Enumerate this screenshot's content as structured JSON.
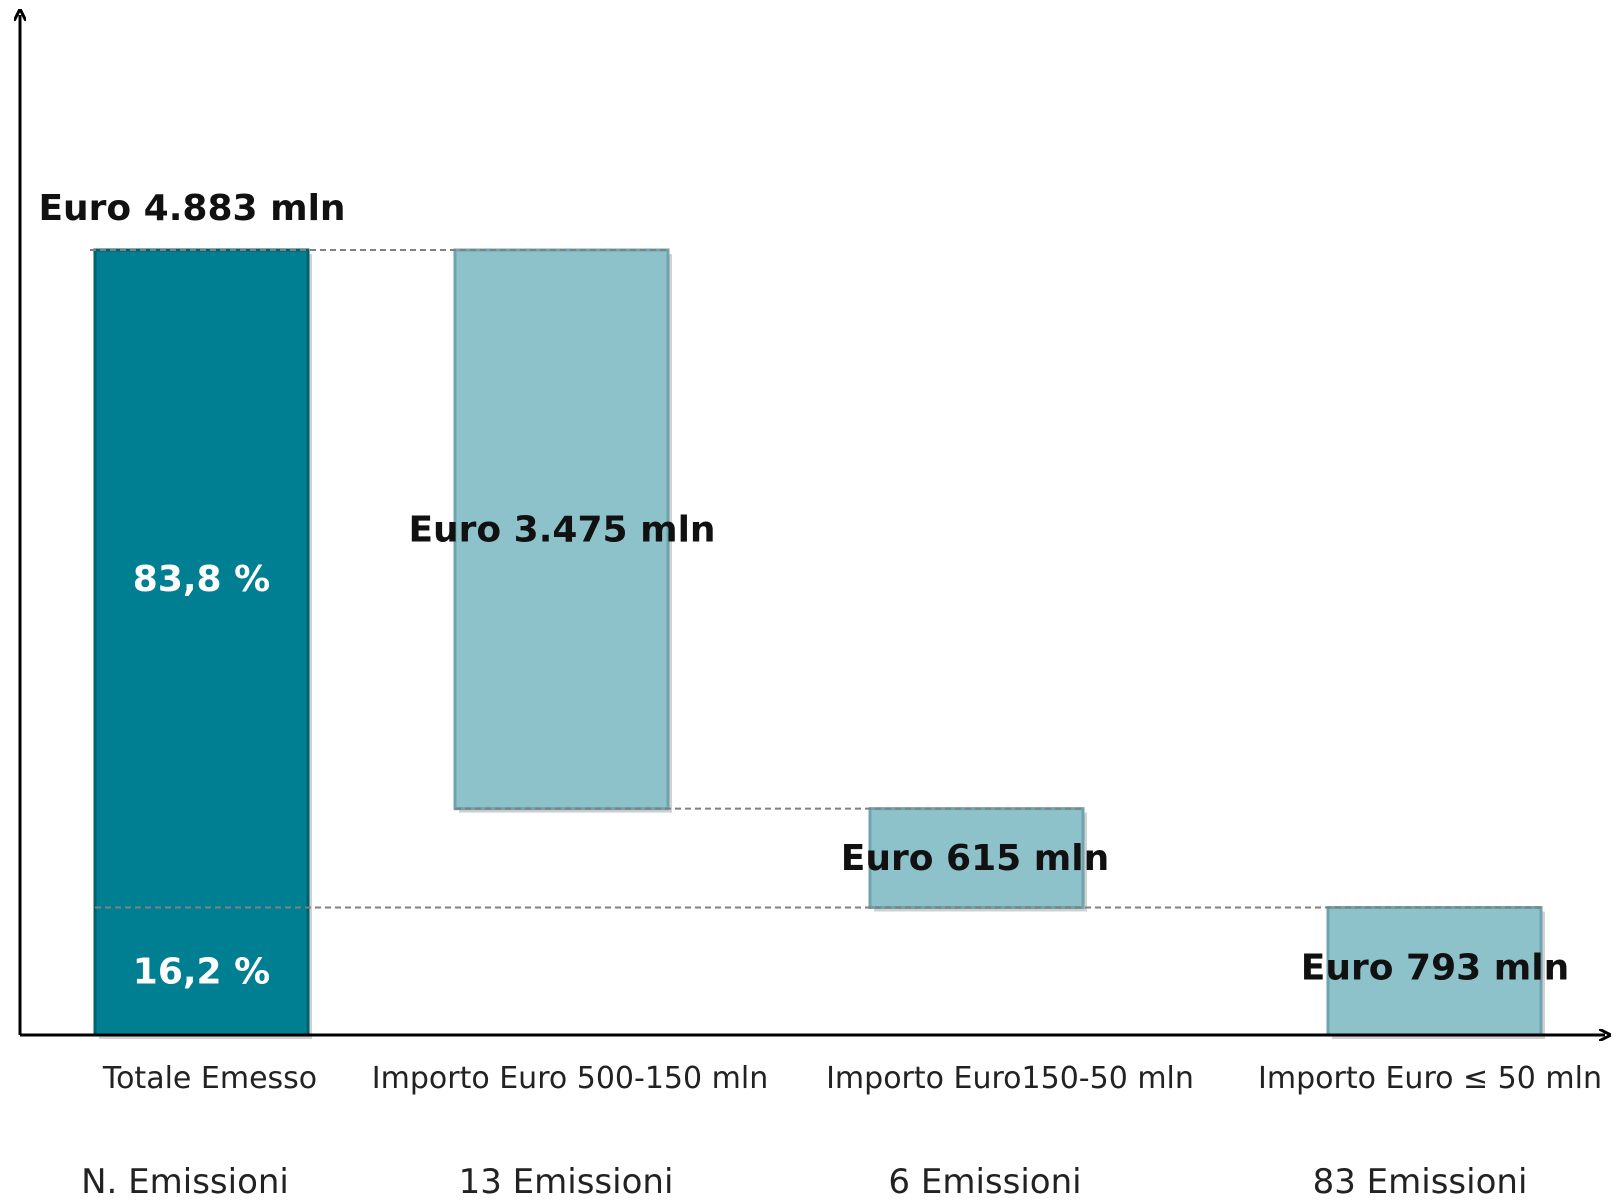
{
  "chart_data": {
    "type": "bar",
    "variant": "waterfall",
    "categories": [
      "Totale Emesso",
      "Importo Euro 500-150 mln",
      "Importo Euro150-50 mln",
      "Importo Euro ≤ 50 mln"
    ],
    "values": [
      4883,
      3475,
      615,
      793
    ],
    "value_labels": [
      "Euro 4.883 mln",
      "Euro 3.475 mln",
      "Euro 615 mln",
      "Euro 793 mln"
    ],
    "row_label": "N. Emissioni",
    "counts": [
      "13 Emissioni",
      "6 Emissioni",
      "83 Emissioni"
    ],
    "share_labels": [
      "83,8 %",
      "16,2 %"
    ],
    "ylim": [
      0,
      5800
    ],
    "grid": false,
    "legend": "none",
    "colors": {
      "total": "#007f92",
      "total_edge": "#00606e",
      "step": "#8ec2cb",
      "step_edge": "#6fa4ae",
      "connector": "#808080",
      "axis": "#000000"
    }
  }
}
